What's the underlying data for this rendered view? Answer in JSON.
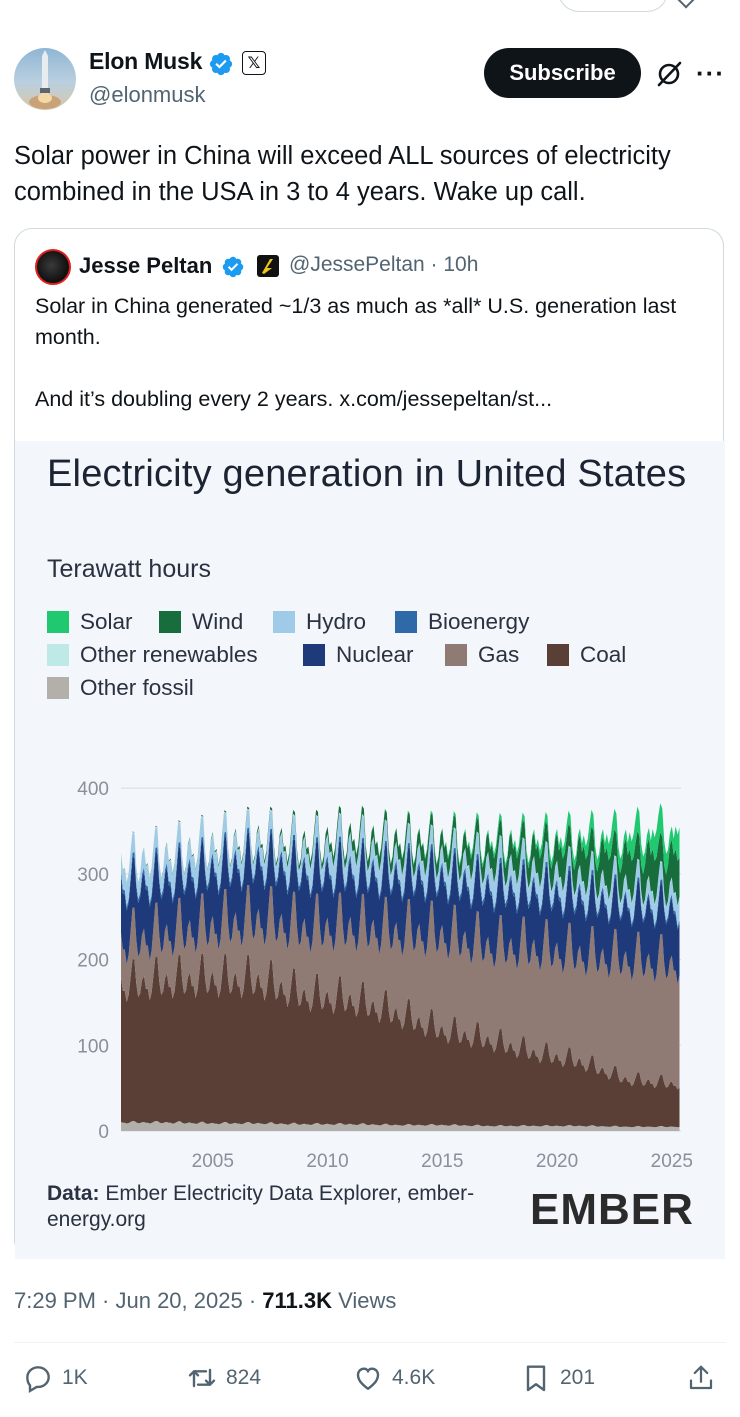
{
  "post": {
    "author_name": "Elon Musk",
    "author_handle": "@elonmusk",
    "subscribe_label": "Subscribe",
    "text": "Solar power in China will exceed ALL sources of electricity combined in the USA in 3 to 4 years. Wake up call."
  },
  "quote": {
    "author_name": "Jesse Peltan",
    "author_handle": "@JessePeltan · 10h",
    "line1": "Solar in China generated ~1/3 as much as *all* U.S. generation last month.",
    "line2": "And it’s doubling every 2 years.  x.com/jessepeltan/st..."
  },
  "chart": {
    "title": "Electricity generation in United States",
    "subtitle": "Terawatt hours",
    "source_label": "Data:",
    "source_text": " Ember Electricity Data Explorer, ember-energy.org",
    "logo_text": "EMBER"
  },
  "chart_data": {
    "type": "area",
    "title": "Electricity generation in United States",
    "ylabel": "Terawatt hours",
    "xlim": [
      2001,
      2025.4
    ],
    "ylim": [
      0,
      420
    ],
    "y_ticks": [
      "0",
      "100",
      "200",
      "300",
      "400"
    ],
    "x_ticks": [
      "2005",
      "2010",
      "2015",
      "2020",
      "2025"
    ],
    "x_tick_values": [
      2005,
      2010,
      2015,
      2020,
      2025
    ],
    "y_tick_values": [
      0,
      100,
      200,
      300,
      400
    ],
    "grid": true,
    "legend_position": "top",
    "stacked": true,
    "x_years": [
      2001,
      2003,
      2005,
      2007,
      2009,
      2011,
      2013,
      2015,
      2017,
      2019,
      2021,
      2023,
      2025
    ],
    "series": [
      {
        "name": "Other fossil",
        "color": "#b3b0ab",
        "values": [
          10,
          10,
          9,
          9,
          8,
          8,
          7,
          7,
          6,
          6,
          6,
          5,
          5
        ]
      },
      {
        "name": "Coal",
        "color": "#5a3f37",
        "values": [
          160,
          165,
          168,
          166,
          150,
          145,
          130,
          110,
          100,
          85,
          75,
          55,
          50
        ]
      },
      {
        "name": "Gas",
        "color": "#8f7b74",
        "values": [
          50,
          55,
          62,
          72,
          78,
          85,
          95,
          112,
          110,
          122,
          125,
          140,
          140
        ]
      },
      {
        "name": "Nuclear",
        "color": "#1e3a7b",
        "values": [
          64,
          64,
          66,
          67,
          66,
          65,
          65,
          66,
          67,
          67,
          66,
          64,
          65
        ]
      },
      {
        "name": "Bioenergy",
        "color": "#2e6aa8",
        "values": [
          5,
          5,
          5,
          5,
          5,
          5,
          5,
          5,
          5,
          5,
          5,
          4,
          4
        ]
      },
      {
        "name": "Hydro",
        "color": "#9fcbe8",
        "values": [
          22,
          23,
          23,
          20,
          23,
          27,
          22,
          21,
          25,
          23,
          21,
          20,
          20
        ]
      },
      {
        "name": "Other renewables",
        "color": "#bfe9e6",
        "values": [
          1,
          1,
          1,
          1,
          1,
          1,
          1,
          1,
          1,
          1,
          1,
          1,
          1
        ]
      },
      {
        "name": "Wind",
        "color": "#176d3c",
        "values": [
          0.5,
          1,
          1.5,
          3,
          6,
          10,
          14,
          16,
          21,
          25,
          32,
          37,
          40
        ]
      },
      {
        "name": "Solar",
        "color": "#20c96f",
        "values": [
          0,
          0,
          0,
          0,
          0.1,
          0.3,
          1,
          2.5,
          5,
          7,
          13,
          20,
          28
        ]
      }
    ]
  },
  "legend": [
    {
      "label": "Solar",
      "color": "#20c96f"
    },
    {
      "label": "Wind",
      "color": "#176d3c"
    },
    {
      "label": "Hydro",
      "color": "#9fcbe8"
    },
    {
      "label": "Bioenergy",
      "color": "#2e6aa8"
    },
    {
      "label": "Other renewables",
      "color": "#bfe9e6"
    },
    {
      "label": "Nuclear",
      "color": "#1e3a7b"
    },
    {
      "label": "Gas",
      "color": "#8f7b74"
    },
    {
      "label": "Coal",
      "color": "#5a3f37"
    },
    {
      "label": "Other fossil",
      "color": "#b3b0ab"
    }
  ],
  "meta": {
    "time": "7:29 PM · Jun 20, 2025 · ",
    "views_count": "711.3K",
    "views_label": " Views"
  },
  "actions": {
    "replies": "1K",
    "reposts": "824",
    "likes": "4.6K",
    "bookmarks": "201"
  },
  "colors": {
    "verified": "#1d9bf0",
    "text": "#0f1419",
    "secondary": "#536471",
    "border": "#cfd9de"
  }
}
